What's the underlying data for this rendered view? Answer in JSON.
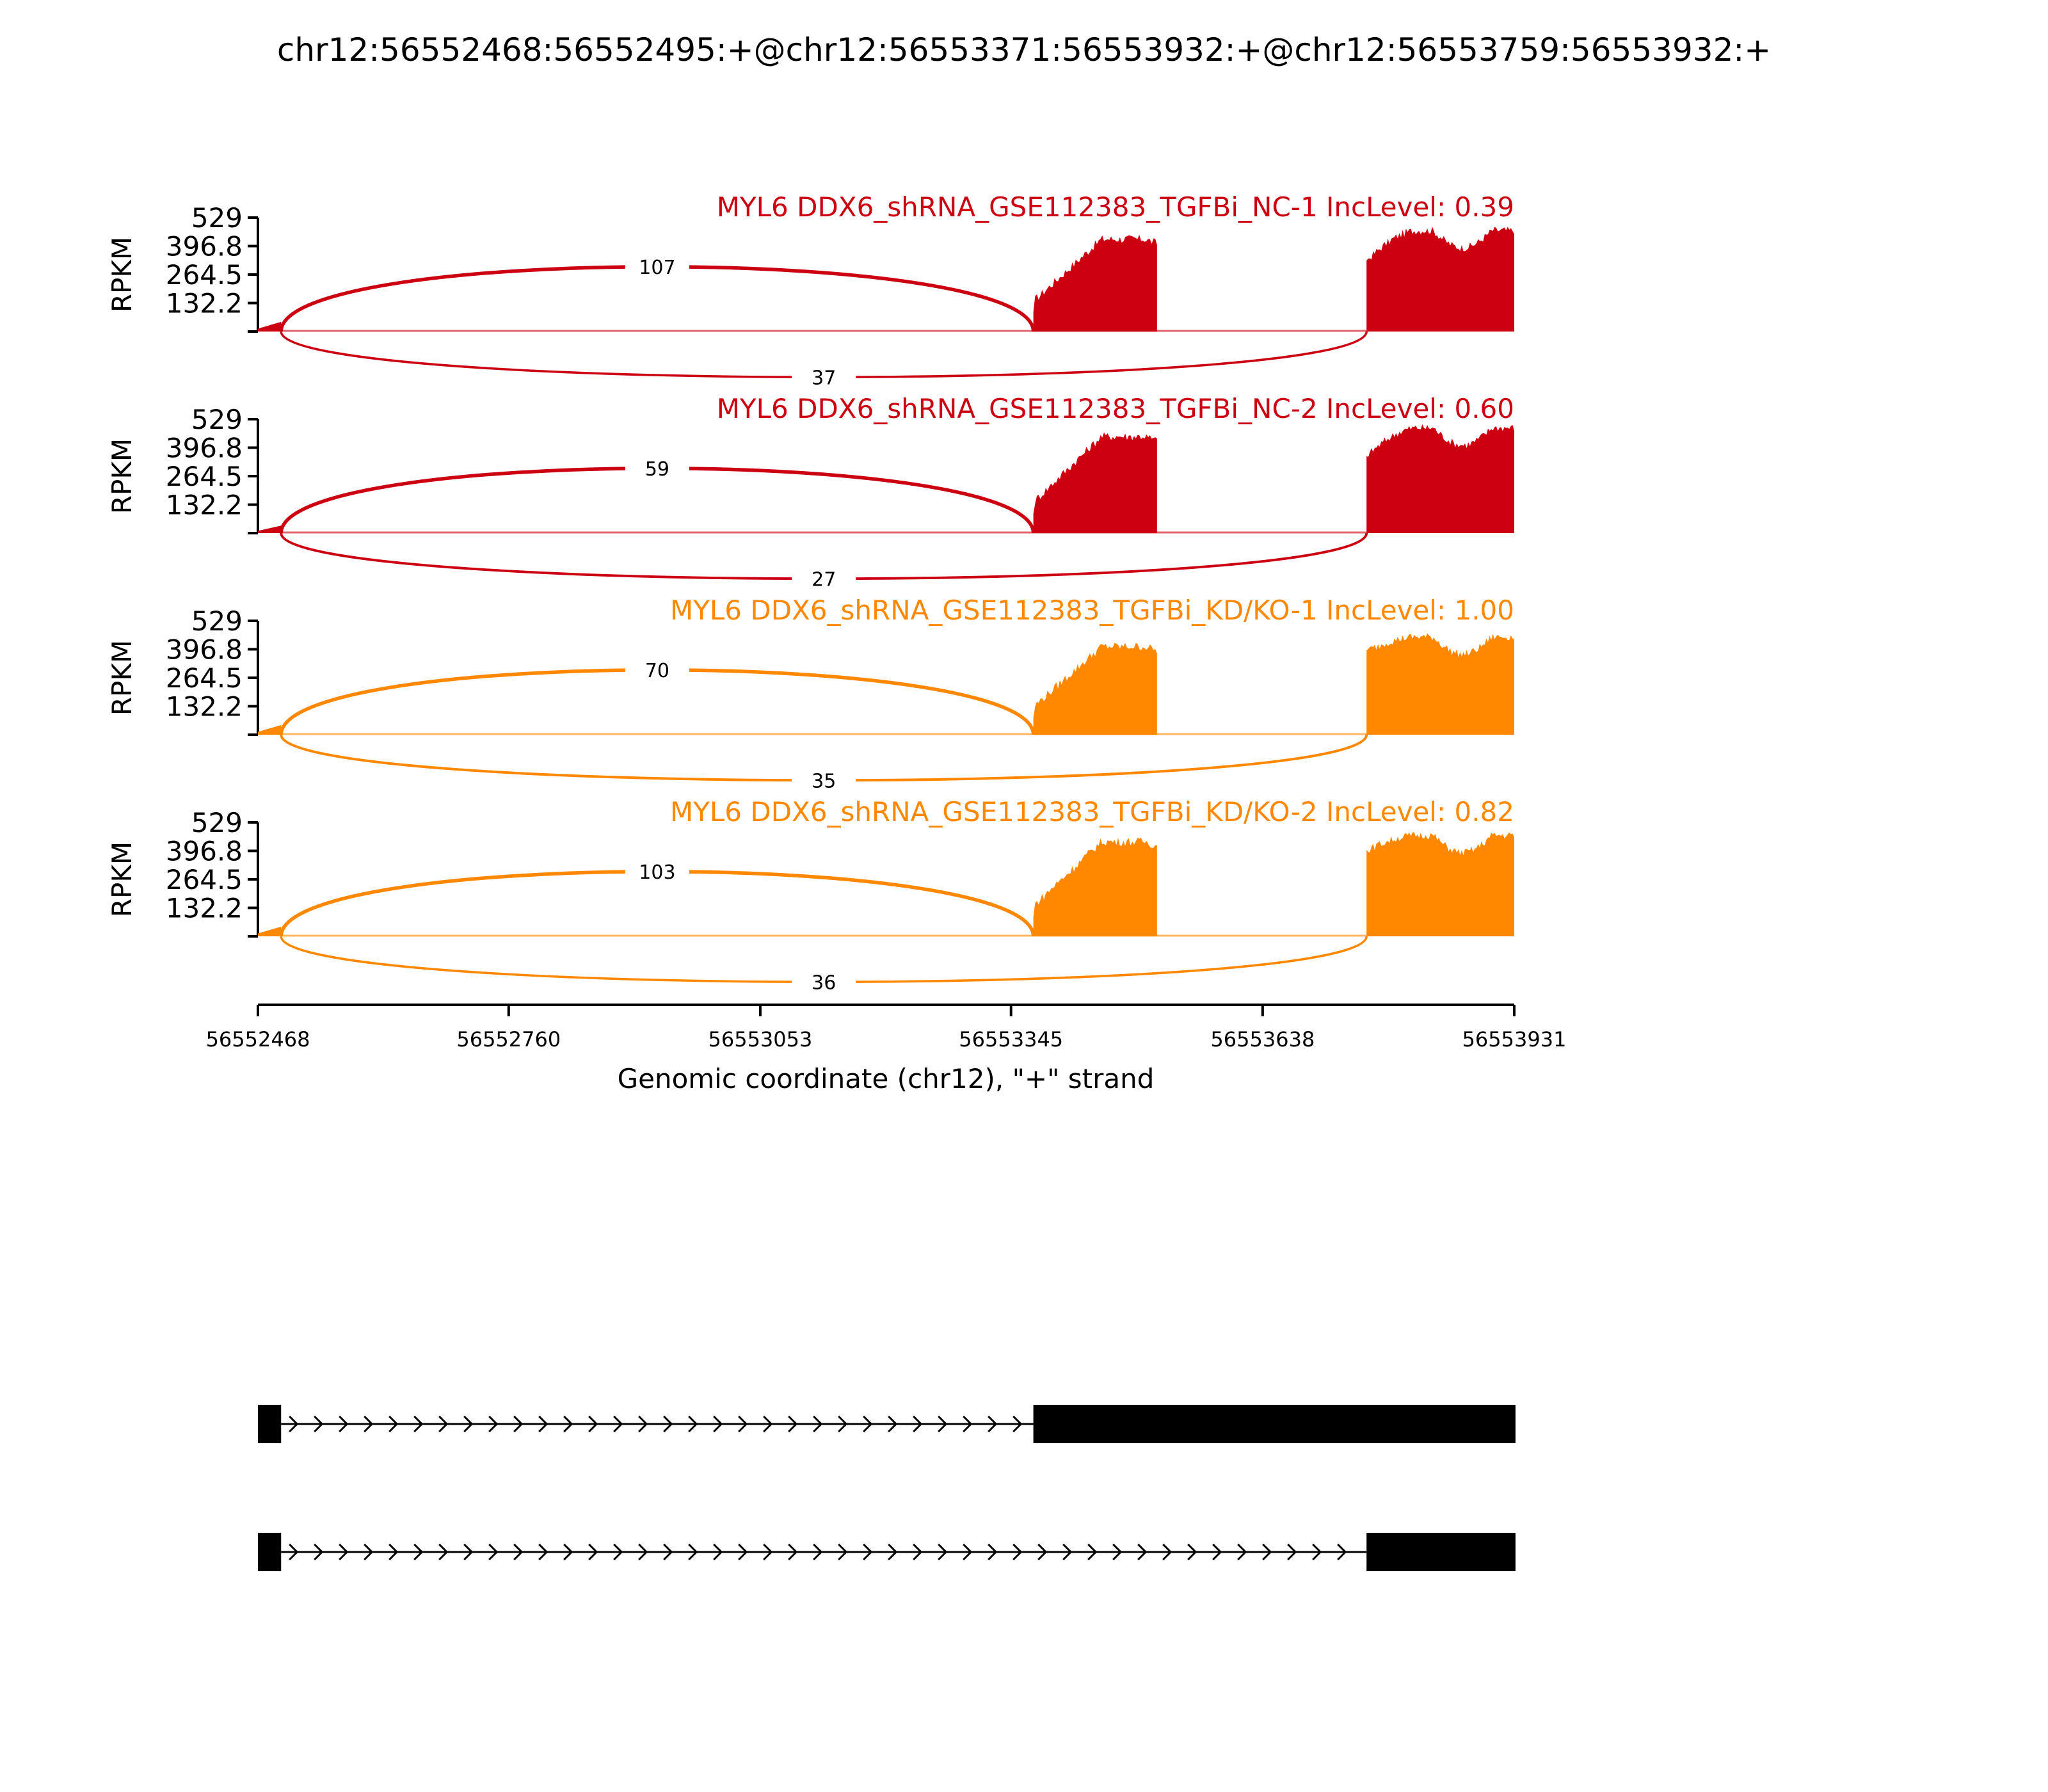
{
  "chart_data": {
    "type": "area",
    "title": "chr12:56552468:56552495:+@chr12:56553371:56553932:+@chr12:56553759:56553932:+",
    "xlabel": "Genomic coordinate (chr12), \"+\" strand",
    "ylabel": "RPKM",
    "xlim": [
      56552468,
      56553931
    ],
    "x_ticks": [
      "56552468",
      "56552760",
      "56553053",
      "56553345",
      "56553638",
      "56553931"
    ],
    "ylim": [
      0,
      529
    ],
    "y_ticks": [
      "529",
      "396.8",
      "264.5",
      "132.2"
    ],
    "grid": false,
    "exon_regions": [
      {
        "start": 56552468,
        "end": 56552495
      },
      {
        "start": 56553371,
        "end": 56553515
      },
      {
        "start": 56553759,
        "end": 56553931
      }
    ],
    "series": [
      {
        "name": "MYL6 DDX6_shRNA_GSE112383_TGFBi_NC-1 IncLevel: 0.39",
        "color": "#cc0011",
        "levels": {
          "exon1": 45,
          "exon2_start": 90,
          "exon2_peak": 430,
          "exon3_start": 330,
          "exon3_peak": 470
        },
        "junctions": [
          {
            "start": 56552495,
            "end": 56553371,
            "count": "107",
            "side": "above"
          },
          {
            "start": 56552495,
            "end": 56553759,
            "count": "37",
            "side": "below"
          }
        ]
      },
      {
        "name": "MYL6 DDX6_shRNA_GSE112383_TGFBi_NC-2 IncLevel: 0.60",
        "color": "#cc0011",
        "levels": {
          "exon1": 35,
          "exon2_start": 90,
          "exon2_peak": 450,
          "exon3_start": 360,
          "exon3_peak": 490
        },
        "junctions": [
          {
            "start": 56552495,
            "end": 56553371,
            "count": "59",
            "side": "above"
          },
          {
            "start": 56552495,
            "end": 56553759,
            "count": "27",
            "side": "below"
          }
        ]
      },
      {
        "name": "MYL6 DDX6_shRNA_GSE112383_TGFBi_KD/KO-1 IncLevel: 1.00",
        "color": "#ff8800",
        "levels": {
          "exon1": 45,
          "exon2_start": 80,
          "exon2_peak": 410,
          "exon3_start": 390,
          "exon3_peak": 455
        },
        "junctions": [
          {
            "start": 56552495,
            "end": 56553371,
            "count": "70",
            "side": "above"
          },
          {
            "start": 56552495,
            "end": 56553759,
            "count": "35",
            "side": "below"
          }
        ]
      },
      {
        "name": "MYL6 DDX6_shRNA_GSE112383_TGFBi_KD/KO-2 IncLevel: 0.82",
        "color": "#ff8800",
        "levels": {
          "exon1": 45,
          "exon2_start": 90,
          "exon2_peak": 440,
          "exon3_start": 400,
          "exon3_peak": 470
        },
        "junctions": [
          {
            "start": 56552495,
            "end": 56553371,
            "count": "103",
            "side": "above"
          },
          {
            "start": 56552495,
            "end": 56553759,
            "count": "36",
            "side": "below"
          }
        ]
      }
    ],
    "transcripts": [
      {
        "exons": [
          {
            "start": 56552468,
            "end": 56552495
          },
          {
            "start": 56553371,
            "end": 56553931
          }
        ]
      },
      {
        "exons": [
          {
            "start": 56552468,
            "end": 56552495
          },
          {
            "start": 56553759,
            "end": 56553931
          }
        ]
      }
    ]
  }
}
